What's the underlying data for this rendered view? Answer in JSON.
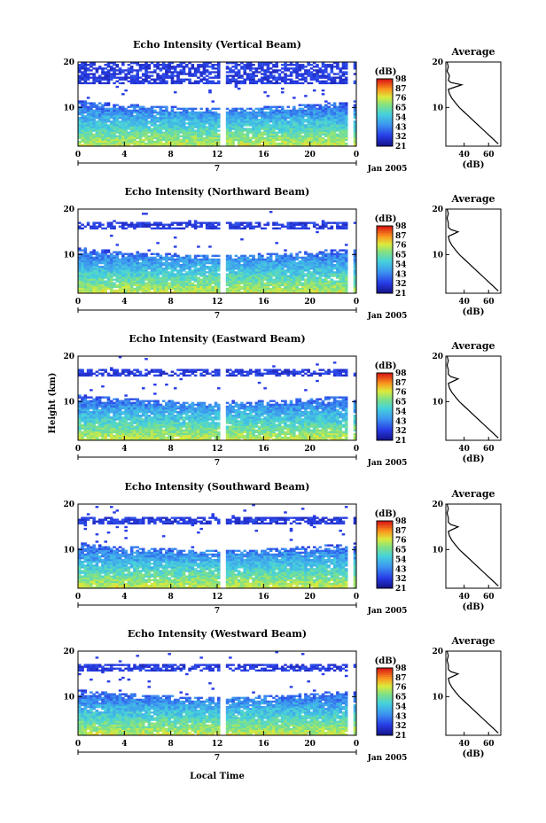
{
  "figure": {
    "xlabel": "Local Time",
    "date_label": "Jan 2005",
    "day_label": "7",
    "average_title": "Average",
    "average_xlabel": "(dB)",
    "ylabel": "Height (km)"
  },
  "chart_data": [
    {
      "type": "heatmap",
      "title": "Echo Intensity (Vertical Beam)",
      "x": {
        "label": "Local Time",
        "ticks": [
          "0",
          "4",
          "8",
          "12",
          "16",
          "20",
          "0"
        ],
        "range": [
          0,
          24
        ]
      },
      "y": {
        "label": "Height (km)",
        "ticks": [
          "10",
          "20"
        ],
        "range": [
          1.5,
          20
        ]
      },
      "colorbar": {
        "label": "(dB)",
        "ticks": [
          "21",
          "32",
          "43",
          "54",
          "65",
          "76",
          "87",
          "98"
        ]
      },
      "gaps_hours": [
        12.5,
        23.5
      ],
      "upper_layer_km": [
        15,
        19.5
      ],
      "average_profile": {
        "x_label": "(dB)",
        "x_ticks": [
          "40",
          "60"
        ],
        "x_range": [
          25,
          70
        ],
        "y_ticks": [
          "10",
          "20"
        ],
        "height_km": [
          2,
          3,
          4,
          5,
          6,
          7,
          8,
          9,
          10,
          11,
          12,
          13,
          14,
          15,
          15.5,
          16,
          17,
          18,
          19,
          20
        ],
        "db": [
          68,
          64,
          60,
          56,
          52,
          48,
          44,
          40,
          36,
          33,
          30,
          28,
          27,
          38,
          29,
          27,
          28,
          26,
          27,
          26
        ]
      }
    },
    {
      "type": "heatmap",
      "title": "Echo Intensity (Northward Beam)",
      "x": {
        "label": "Local Time",
        "ticks": [
          "0",
          "4",
          "8",
          "12",
          "16",
          "20",
          "0"
        ],
        "range": [
          0,
          24
        ]
      },
      "y": {
        "label": "Height (km)",
        "ticks": [
          "10",
          "20"
        ],
        "range": [
          1.5,
          20
        ]
      },
      "colorbar": {
        "label": "(dB)",
        "ticks": [
          "21",
          "32",
          "43",
          "54",
          "65",
          "76",
          "87",
          "98"
        ]
      },
      "gaps_hours": [
        12.5,
        23.5
      ],
      "upper_layer_km": [
        15.5,
        17
      ],
      "average_profile": {
        "x_label": "(dB)",
        "x_ticks": [
          "40",
          "60"
        ],
        "x_range": [
          25,
          70
        ],
        "y_ticks": [
          "10",
          "20"
        ],
        "height_km": [
          2,
          3,
          4,
          5,
          6,
          7,
          8,
          9,
          10,
          11,
          12,
          13,
          14,
          15,
          15.5,
          16,
          17,
          18,
          19,
          20
        ],
        "db": [
          68,
          64,
          60,
          56,
          52,
          48,
          44,
          40,
          36,
          33,
          30,
          28,
          27,
          35,
          29,
          27,
          27,
          26,
          27,
          26
        ]
      }
    },
    {
      "type": "heatmap",
      "title": "Echo Intensity (Eastward Beam)",
      "x": {
        "label": "Local Time",
        "ticks": [
          "0",
          "4",
          "8",
          "12",
          "16",
          "20",
          "0"
        ],
        "range": [
          0,
          24
        ]
      },
      "y": {
        "label": "Height (km)",
        "ticks": [
          "10",
          "20"
        ],
        "range": [
          1.5,
          20
        ]
      },
      "colorbar": {
        "label": "(dB)",
        "ticks": [
          "21",
          "32",
          "43",
          "54",
          "65",
          "76",
          "87",
          "98"
        ]
      },
      "gaps_hours": [
        12.5,
        23.5
      ],
      "upper_layer_km": [
        15.5,
        17
      ],
      "average_profile": {
        "x_label": "(dB)",
        "x_ticks": [
          "40",
          "60"
        ],
        "x_range": [
          25,
          70
        ],
        "y_ticks": [
          "10",
          "20"
        ],
        "height_km": [
          2,
          3,
          4,
          5,
          6,
          7,
          8,
          9,
          10,
          11,
          12,
          13,
          14,
          15,
          15.5,
          16,
          17,
          18,
          19,
          20
        ],
        "db": [
          68,
          64,
          60,
          56,
          52,
          48,
          44,
          40,
          36,
          33,
          30,
          28,
          27,
          35,
          29,
          27,
          27,
          26,
          27,
          26
        ]
      }
    },
    {
      "type": "heatmap",
      "title": "Echo Intensity (Southward Beam)",
      "x": {
        "label": "Local Time",
        "ticks": [
          "0",
          "4",
          "8",
          "12",
          "16",
          "20",
          "0"
        ],
        "range": [
          0,
          24
        ]
      },
      "y": {
        "label": "Height (km)",
        "ticks": [
          "10",
          "20"
        ],
        "range": [
          1.5,
          20
        ]
      },
      "colorbar": {
        "label": "(dB)",
        "ticks": [
          "21",
          "32",
          "43",
          "54",
          "65",
          "76",
          "87",
          "98"
        ]
      },
      "gaps_hours": [
        12.5,
        23.5
      ],
      "upper_layer_km": [
        15.5,
        17
      ],
      "average_profile": {
        "x_label": "(dB)",
        "x_ticks": [
          "40",
          "60"
        ],
        "x_range": [
          25,
          70
        ],
        "y_ticks": [
          "10",
          "20"
        ],
        "height_km": [
          2,
          3,
          4,
          5,
          6,
          7,
          8,
          9,
          10,
          11,
          12,
          13,
          14,
          15,
          15.5,
          16,
          17,
          18,
          19,
          20
        ],
        "db": [
          68,
          64,
          60,
          56,
          52,
          48,
          44,
          40,
          36,
          33,
          30,
          28,
          27,
          35,
          29,
          27,
          27,
          26,
          27,
          26
        ]
      }
    },
    {
      "type": "heatmap",
      "title": "Echo Intensity (Westward Beam)",
      "x": {
        "label": "Local Time",
        "ticks": [
          "0",
          "4",
          "8",
          "12",
          "16",
          "20",
          "0"
        ],
        "range": [
          0,
          24
        ]
      },
      "y": {
        "label": "Height (km)",
        "ticks": [
          "10",
          "20"
        ],
        "range": [
          1.5,
          20
        ]
      },
      "colorbar": {
        "label": "(dB)",
        "ticks": [
          "21",
          "32",
          "43",
          "54",
          "65",
          "76",
          "87",
          "98"
        ]
      },
      "gaps_hours": [
        12.5,
        23.5
      ],
      "upper_layer_km": [
        15.5,
        17
      ],
      "average_profile": {
        "x_label": "(dB)",
        "x_ticks": [
          "40",
          "60"
        ],
        "x_range": [
          25,
          70
        ],
        "y_ticks": [
          "10",
          "20"
        ],
        "height_km": [
          2,
          3,
          4,
          5,
          6,
          7,
          8,
          9,
          10,
          11,
          12,
          13,
          14,
          15,
          15.5,
          16,
          17,
          18,
          19,
          20
        ],
        "db": [
          68,
          64,
          60,
          56,
          52,
          48,
          44,
          40,
          36,
          33,
          30,
          28,
          27,
          35,
          29,
          27,
          27,
          26,
          27,
          26
        ]
      }
    }
  ]
}
